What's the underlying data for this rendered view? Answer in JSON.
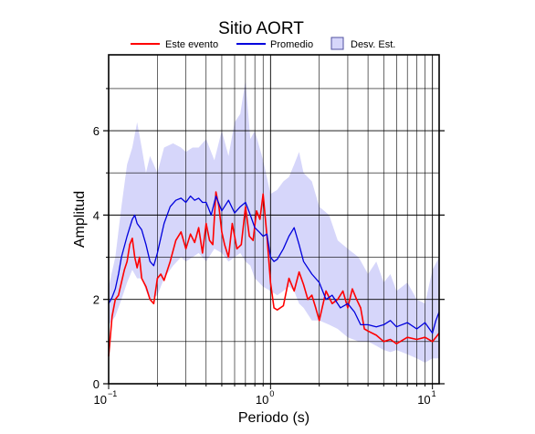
{
  "chart_data": {
    "type": "line",
    "title": "Sitio AORT",
    "xlabel": "Periodo (s)",
    "ylabel": "Amplitud",
    "xscale": "log",
    "xlim": [
      0.1,
      11
    ],
    "ylim": [
      0,
      7.8
    ],
    "grid": true,
    "legend_position": "top",
    "x_ticks": [
      {
        "value": 0.1,
        "base": "10",
        "exp": "−1"
      },
      {
        "value": 1,
        "base": "10",
        "exp": "0"
      },
      {
        "value": 10,
        "base": "10",
        "exp": "1"
      }
    ],
    "y_ticks": [
      0,
      2,
      4,
      6
    ],
    "legend": {
      "event_label": "Este evento",
      "mean_label": "Promedio",
      "band_label": "Desv. Est."
    },
    "colors": {
      "event": "#ff0000",
      "mean": "#0000dd",
      "band": "#d6d6fa",
      "band_border": "#5050a0",
      "grid": "#000000"
    },
    "series": [
      {
        "name": "Este evento",
        "x": [
          0.1,
          0.105,
          0.11,
          0.115,
          0.12,
          0.125,
          0.13,
          0.135,
          0.14,
          0.145,
          0.15,
          0.155,
          0.16,
          0.17,
          0.18,
          0.19,
          0.2,
          0.21,
          0.22,
          0.24,
          0.26,
          0.28,
          0.3,
          0.32,
          0.34,
          0.36,
          0.38,
          0.4,
          0.42,
          0.44,
          0.46,
          0.48,
          0.5,
          0.52,
          0.55,
          0.58,
          0.62,
          0.66,
          0.7,
          0.74,
          0.78,
          0.82,
          0.86,
          0.9,
          0.95,
          1.0,
          1.05,
          1.1,
          1.2,
          1.3,
          1.4,
          1.5,
          1.6,
          1.7,
          1.8,
          1.9,
          2.0,
          2.2,
          2.4,
          2.6,
          2.8,
          3.0,
          3.2,
          3.4,
          3.6,
          3.8,
          4.0,
          4.5,
          5.0,
          5.5,
          6.0,
          7.0,
          8.0,
          9.0,
          10.0,
          10.5,
          11.0
        ],
        "y": [
          0.65,
          1.6,
          2.0,
          2.1,
          2.4,
          2.7,
          2.9,
          3.3,
          3.45,
          3.0,
          2.75,
          3.0,
          2.5,
          2.3,
          2.0,
          1.9,
          2.5,
          2.6,
          2.45,
          2.9,
          3.4,
          3.6,
          3.2,
          3.55,
          3.35,
          3.7,
          3.1,
          3.8,
          3.4,
          3.3,
          4.55,
          4.2,
          3.6,
          3.3,
          3.0,
          3.8,
          3.2,
          3.3,
          4.2,
          3.5,
          3.4,
          4.1,
          3.9,
          4.5,
          3.5,
          2.4,
          1.8,
          1.75,
          1.85,
          2.5,
          2.2,
          2.65,
          2.35,
          2.0,
          2.1,
          1.8,
          1.5,
          2.2,
          1.9,
          2.0,
          2.2,
          1.8,
          2.25,
          2.0,
          1.8,
          1.3,
          1.25,
          1.15,
          1.0,
          1.05,
          0.95,
          1.1,
          1.05,
          1.1,
          1.0,
          1.1,
          1.2
        ]
      },
      {
        "name": "Promedio",
        "x": [
          0.1,
          0.105,
          0.11,
          0.115,
          0.12,
          0.13,
          0.14,
          0.145,
          0.15,
          0.16,
          0.17,
          0.18,
          0.19,
          0.2,
          0.22,
          0.24,
          0.26,
          0.28,
          0.3,
          0.32,
          0.34,
          0.36,
          0.38,
          0.4,
          0.43,
          0.46,
          0.5,
          0.55,
          0.6,
          0.65,
          0.7,
          0.75,
          0.8,
          0.85,
          0.9,
          0.95,
          1.0,
          1.05,
          1.1,
          1.2,
          1.3,
          1.4,
          1.5,
          1.6,
          1.8,
          2.0,
          2.2,
          2.4,
          2.7,
          3.0,
          3.3,
          3.6,
          4.0,
          4.5,
          5.0,
          5.5,
          6.0,
          7.0,
          8.0,
          9.0,
          10.0,
          10.5,
          11.0
        ],
        "y": [
          1.9,
          2.05,
          2.25,
          2.6,
          3.0,
          3.5,
          3.9,
          4.0,
          3.8,
          3.65,
          3.3,
          2.9,
          2.8,
          3.1,
          3.8,
          4.2,
          4.35,
          4.4,
          4.3,
          4.45,
          4.35,
          4.4,
          4.3,
          4.3,
          4.0,
          4.45,
          4.1,
          4.35,
          4.05,
          4.2,
          4.3,
          4.0,
          3.7,
          3.6,
          3.5,
          3.55,
          3.0,
          2.9,
          2.95,
          3.2,
          3.5,
          3.7,
          3.3,
          2.9,
          2.6,
          2.4,
          2.0,
          2.1,
          1.8,
          1.9,
          1.7,
          1.4,
          1.4,
          1.35,
          1.4,
          1.5,
          1.35,
          1.45,
          1.3,
          1.45,
          1.2,
          1.5,
          1.7
        ]
      }
    ],
    "band": {
      "name": "Desv. Est.",
      "x": [
        0.1,
        0.11,
        0.12,
        0.13,
        0.14,
        0.15,
        0.16,
        0.17,
        0.18,
        0.2,
        0.22,
        0.25,
        0.28,
        0.3,
        0.33,
        0.36,
        0.4,
        0.45,
        0.5,
        0.55,
        0.6,
        0.65,
        0.7,
        0.75,
        0.8,
        0.9,
        1.0,
        1.1,
        1.2,
        1.3,
        1.4,
        1.5,
        1.6,
        1.8,
        2.0,
        2.3,
        2.6,
        3.0,
        3.5,
        4.0,
        4.5,
        5.0,
        5.5,
        6.0,
        7.0,
        8.0,
        9.0,
        10.0,
        11.0
      ],
      "upper": [
        2.3,
        3.0,
        4.2,
        5.2,
        5.6,
        6.2,
        5.6,
        5.0,
        5.4,
        5.0,
        5.6,
        5.7,
        5.6,
        5.5,
        5.6,
        5.6,
        5.8,
        5.3,
        6.0,
        5.4,
        6.2,
        6.4,
        7.2,
        5.8,
        6.0,
        5.3,
        4.5,
        4.6,
        4.8,
        4.9,
        5.2,
        5.5,
        5.0,
        4.8,
        4.2,
        4.0,
        3.4,
        3.2,
        3.0,
        2.6,
        2.9,
        2.4,
        2.6,
        2.2,
        2.4,
        2.0,
        1.9,
        2.7,
        3.0
      ],
      "lower": [
        1.4,
        1.6,
        2.0,
        2.4,
        2.7,
        2.5,
        2.5,
        2.2,
        2.0,
        2.1,
        2.5,
        2.8,
        3.0,
        2.9,
        3.0,
        3.1,
        2.9,
        3.2,
        3.1,
        2.9,
        3.0,
        3.1,
        2.9,
        2.8,
        2.5,
        2.3,
        2.2,
        2.1,
        2.2,
        2.3,
        2.2,
        1.9,
        1.8,
        1.5,
        1.5,
        1.4,
        1.3,
        1.1,
        1.0,
        1.0,
        0.9,
        0.8,
        0.75,
        0.8,
        0.7,
        0.6,
        0.5,
        0.6,
        0.6
      ]
    }
  }
}
